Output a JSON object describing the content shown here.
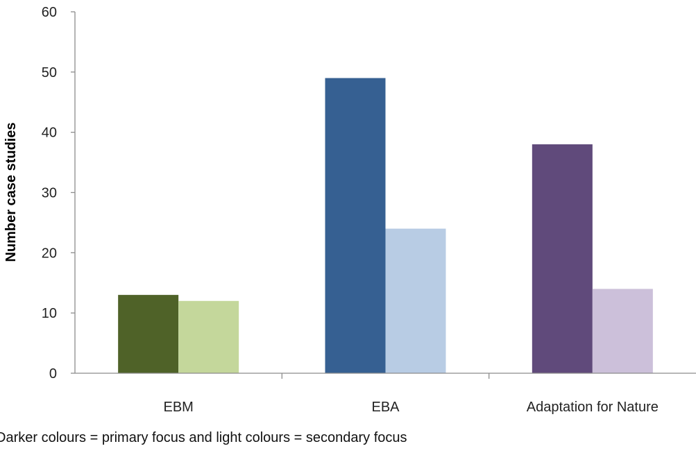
{
  "chart_data": {
    "type": "bar",
    "categories": [
      "EBM",
      "EBA",
      "Adaptation for Nature"
    ],
    "series": [
      {
        "values": [
          13,
          49,
          38
        ],
        "colors": [
          "#4f6228",
          "#366092",
          "#604a7b"
        ]
      },
      {
        "values": [
          12,
          24,
          14
        ],
        "colors": [
          "#c4d79b",
          "#b8cce4",
          "#ccc0da"
        ]
      }
    ],
    "ylabel": "Number case studies",
    "ylim": [
      0,
      60
    ],
    "yticks": [
      0,
      10,
      20,
      30,
      40,
      50,
      60
    ],
    "grid": false,
    "legend": "none"
  },
  "caption": "Darker colours = primary focus and light colours = secondary focus"
}
